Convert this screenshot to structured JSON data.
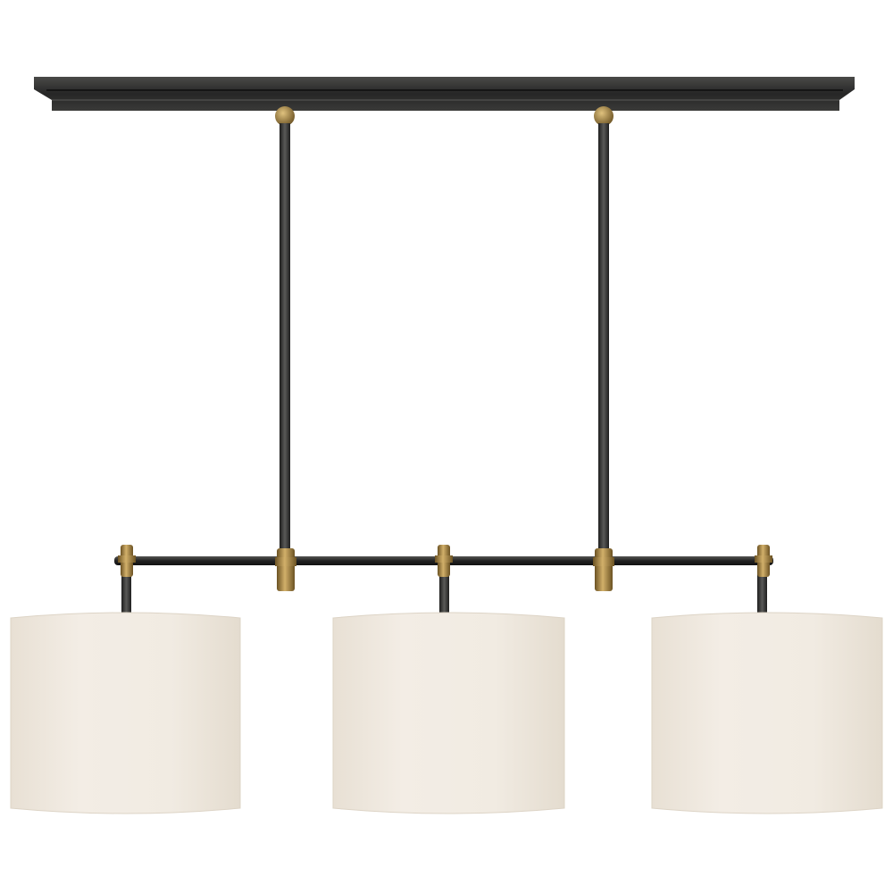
{
  "image": {
    "subject": "linear-chandelier",
    "shade_count": 3,
    "colors": {
      "background": "#ffffff",
      "metal": "#2c2c2c",
      "brass": "#a8843f",
      "shade": "#efe9e0"
    }
  }
}
